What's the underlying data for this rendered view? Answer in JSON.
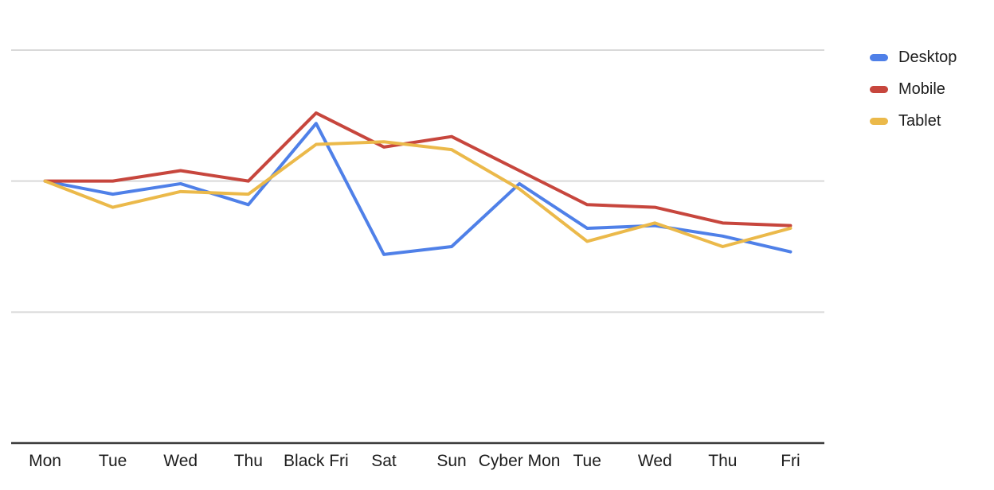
{
  "chart_data": {
    "type": "line",
    "title": "",
    "xlabel": "",
    "ylabel": "",
    "categories": [
      "Mon",
      "Tue",
      "Wed",
      "Thu",
      "Black Fri",
      "Sat",
      "Sun",
      "Cyber Mon",
      "Tue",
      "Wed",
      "Thu",
      "Fri"
    ],
    "series": [
      {
        "name": "Desktop",
        "color": "#4f80e8",
        "values": [
          100,
          95,
          99,
          91,
          122,
          72,
          75,
          99,
          82,
          83,
          79,
          73
        ]
      },
      {
        "name": "Mobile",
        "color": "#c7463d",
        "values": [
          100,
          100,
          104,
          100,
          126,
          113,
          117,
          104,
          91,
          90,
          84,
          83
        ]
      },
      {
        "name": "Tablet",
        "color": "#ebb94a",
        "values": [
          100,
          90,
          96,
          95,
          114,
          115,
          112,
          97,
          77,
          84,
          75,
          82
        ]
      }
    ],
    "y_axis": {
      "tick_labels_visible": false,
      "gridline_values": [
        50,
        100,
        150
      ],
      "baseline_value": 0,
      "ylim": [
        0,
        169
      ]
    },
    "x_axis": {
      "tick_labels_visible": true
    },
    "grid": true,
    "legend": {
      "position": "right",
      "entries": [
        "Desktop",
        "Mobile",
        "Tablet"
      ]
    }
  },
  "style": {
    "background": "#ffffff",
    "gridline_color": "#d9d9d9",
    "axis_line_color": "#3a3a3a",
    "label_color": "#1c1c1c"
  }
}
